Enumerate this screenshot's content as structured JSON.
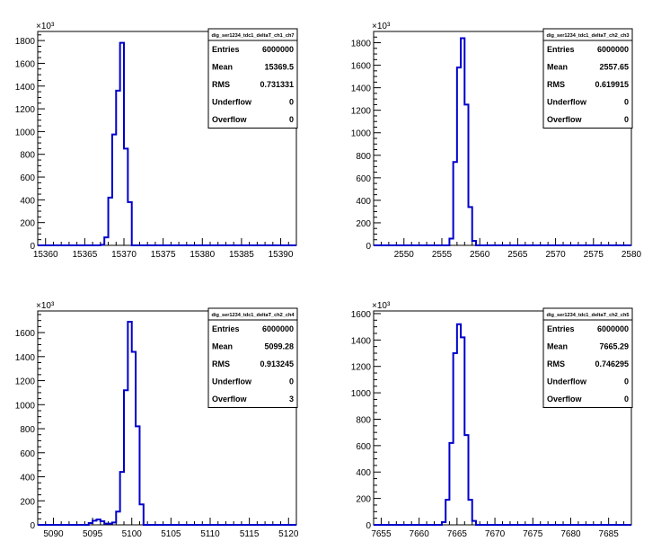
{
  "chart_data": [
    {
      "type": "bar",
      "title": "dig_ser1234_tdc1_deltaT_ch1_ch7",
      "multiplier": "×10³",
      "xlim": [
        15359,
        15392
      ],
      "ylim": [
        0,
        1880
      ],
      "xticks": [
        15360,
        15365,
        15370,
        15375,
        15380,
        15385,
        15390
      ],
      "yticks": [
        0,
        200,
        400,
        600,
        800,
        1000,
        1200,
        1400,
        1600,
        1800
      ],
      "bin_width": 0.5,
      "bins_x": [
        15367,
        15367.5,
        15368,
        15368.5,
        15369,
        15369.5,
        15370,
        15370.5
      ],
      "bins_y": [
        5,
        70,
        420,
        975,
        1360,
        1780,
        850,
        380
      ],
      "stats": [
        {
          "label": "Entries",
          "value": "6000000"
        },
        {
          "label": "Mean",
          "value": "15369.5"
        },
        {
          "label": "RMS",
          "value": "0.731331"
        },
        {
          "label": "Underflow",
          "value": "0"
        },
        {
          "label": "Overflow",
          "value": "0"
        }
      ]
    },
    {
      "type": "bar",
      "title": "dig_ser1234_tdc1_deltaT_ch2_ch3",
      "multiplier": "×10³",
      "xlim": [
        2546,
        2580
      ],
      "ylim": [
        0,
        1900
      ],
      "xticks": [
        2550,
        2555,
        2560,
        2565,
        2570,
        2575,
        2580
      ],
      "yticks": [
        0,
        200,
        400,
        600,
        800,
        1000,
        1200,
        1400,
        1600,
        1800
      ],
      "bin_width": 0.5,
      "bins_x": [
        2556,
        2556.5,
        2557,
        2557.5,
        2558,
        2558.5,
        2559
      ],
      "bins_y": [
        60,
        740,
        1580,
        1840,
        1250,
        340,
        40
      ],
      "stats": [
        {
          "label": "Entries",
          "value": "6000000"
        },
        {
          "label": "Mean",
          "value": "2557.65"
        },
        {
          "label": "RMS",
          "value": "0.619915"
        },
        {
          "label": "Underflow",
          "value": "0"
        },
        {
          "label": "Overflow",
          "value": "0"
        }
      ]
    },
    {
      "type": "bar",
      "title": "dig_ser1234_tdc1_deltaT_ch2_ch4",
      "multiplier": "×10³",
      "xlim": [
        5088,
        5121
      ],
      "ylim": [
        0,
        1780
      ],
      "xticks": [
        5090,
        5095,
        5100,
        5105,
        5110,
        5115,
        5120
      ],
      "yticks": [
        0,
        200,
        400,
        600,
        800,
        1000,
        1200,
        1400,
        1600
      ],
      "bin_width": 0.5,
      "bins_x": [
        5094.5,
        5095,
        5095.5,
        5096,
        5096.5,
        5097,
        5097.5,
        5098,
        5098.5,
        5099,
        5099.5,
        5100,
        5100.5,
        5101
      ],
      "bins_y": [
        15,
        35,
        45,
        30,
        10,
        10,
        20,
        110,
        440,
        1120,
        1690,
        1440,
        820,
        170
      ],
      "stats": [
        {
          "label": "Entries",
          "value": "6000000"
        },
        {
          "label": "Mean",
          "value": "5099.28"
        },
        {
          "label": "RMS",
          "value": "0.913245"
        },
        {
          "label": "Underflow",
          "value": "0"
        },
        {
          "label": "Overflow",
          "value": "3"
        }
      ]
    },
    {
      "type": "bar",
      "title": "dig_ser1234_tdc1_deltaT_ch2_ch5",
      "multiplier": "×10³",
      "xlim": [
        7654,
        7688
      ],
      "ylim": [
        0,
        1620
      ],
      "xticks": [
        7655,
        7660,
        7665,
        7670,
        7675,
        7680,
        7685
      ],
      "yticks": [
        0,
        200,
        400,
        600,
        800,
        1000,
        1200,
        1400,
        1600
      ],
      "bin_width": 0.5,
      "bins_x": [
        7663,
        7663.5,
        7664,
        7664.5,
        7665,
        7665.5,
        7666,
        7666.5,
        7667
      ],
      "bins_y": [
        20,
        190,
        620,
        1300,
        1520,
        1420,
        680,
        190,
        30
      ],
      "stats": [
        {
          "label": "Entries",
          "value": "6000000"
        },
        {
          "label": "Mean",
          "value": "7665.29"
        },
        {
          "label": "RMS",
          "value": "0.746295"
        },
        {
          "label": "Underflow",
          "value": "0"
        },
        {
          "label": "Overflow",
          "value": "0"
        }
      ]
    }
  ]
}
